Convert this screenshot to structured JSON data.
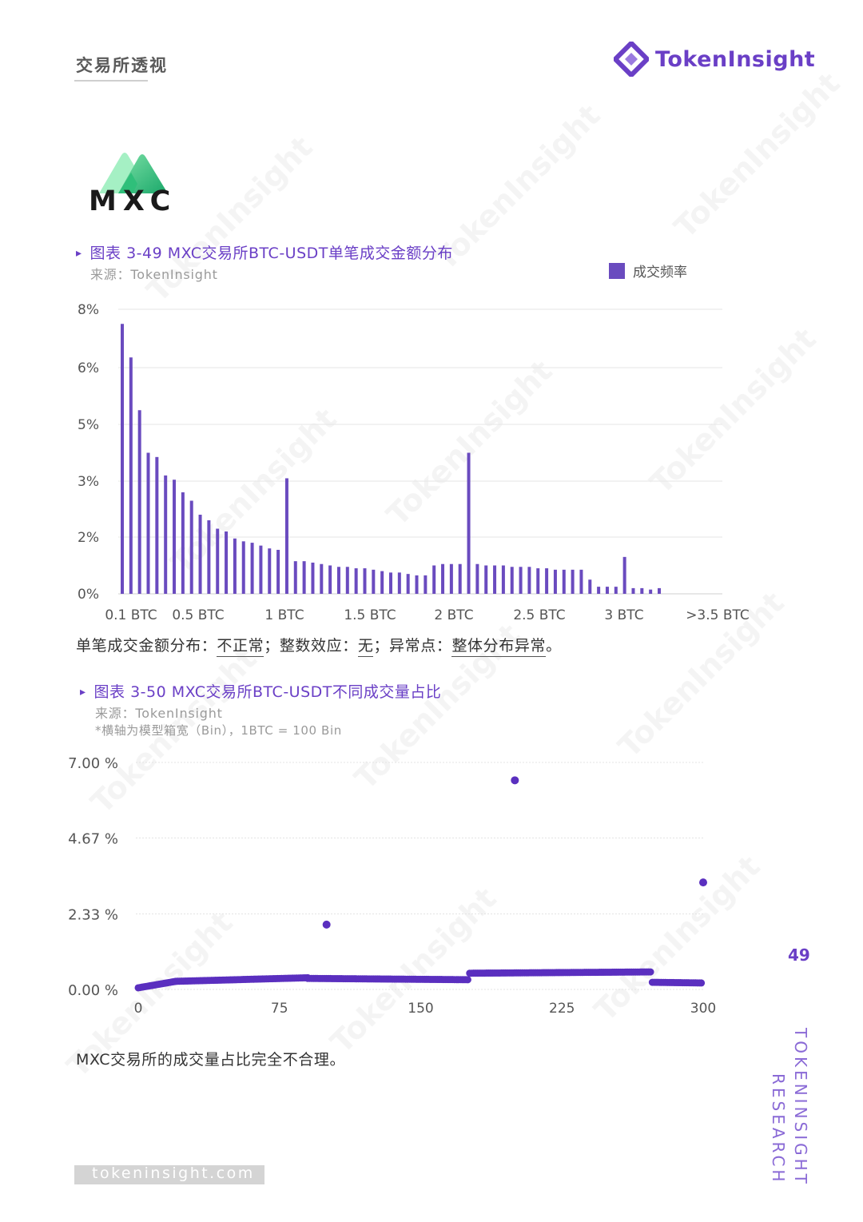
{
  "header": {
    "section_title": "交易所透视",
    "brand_name": "TokenInsight"
  },
  "exchange_logo": {
    "text": "MXC"
  },
  "figure1": {
    "title": "图表 3-49 MXC交易所BTC-USDT单笔成交金额分布",
    "source": "来源：TokenInsight",
    "legend_label": "成交频率"
  },
  "summary1": {
    "prefix": "单笔成交金额分布：",
    "v1": "不正常",
    "sep1": "；整数效应：",
    "v2": "无",
    "sep2": "；异常点：",
    "v3": "整体分布异常",
    "end": "。"
  },
  "figure2": {
    "title": "图表 3-50 MXC交易所BTC-USDT不同成交量占比",
    "source": "来源：TokenInsight",
    "note": "*横轴为模型箱宽（Bin），1BTC = 100 Bin"
  },
  "summary2": "MXC交易所的成交量占比完全不合理。",
  "page_number": "49",
  "side_label_1": "TOKENINSIGHT",
  "side_label_2": "RESEARCH",
  "footer_url": "tokeninsight.com",
  "colors": {
    "accent": "#6a3fc6",
    "bar": "#6a4bbf",
    "dot": "#5a2fbf"
  },
  "chart_data": [
    {
      "type": "bar",
      "ytick_labels": [
        "0%",
        "2%",
        "3%",
        "5%",
        "6%",
        "8%"
      ],
      "ytick_values": [
        0,
        2,
        3,
        5,
        6,
        8
      ],
      "ylim": [
        0,
        8
      ],
      "xtick_labels": [
        "0.1 BTC",
        "0.5 BTC",
        "1 BTC",
        "1.5 BTC",
        "2 BTC",
        "2.5 BTC",
        "3 BTC",
        ">3.5 BTC"
      ],
      "series": [
        {
          "name": "成交频率",
          "values": [
            7.5,
            6.35,
            5.25,
            4.0,
            3.85,
            3.2,
            3.05,
            2.8,
            2.65,
            2.4,
            2.3,
            2.15,
            2.1,
            1.95,
            1.85,
            1.8,
            1.7,
            1.6,
            1.55,
            3.1,
            1.15,
            1.15,
            1.1,
            1.05,
            1.0,
            0.95,
            0.95,
            0.9,
            0.9,
            0.85,
            0.8,
            0.75,
            0.75,
            0.7,
            0.65,
            0.65,
            1.0,
            1.05,
            1.05,
            1.05,
            4.0,
            1.05,
            1.0,
            1.0,
            1.0,
            0.95,
            0.95,
            0.95,
            0.9,
            0.9,
            0.85,
            0.85,
            0.85,
            0.85,
            0.5,
            0.25,
            0.25,
            0.25,
            1.3,
            0.2,
            0.2,
            0.15,
            0.2
          ]
        }
      ]
    },
    {
      "type": "scatter",
      "ytick_labels": [
        "0.00 %",
        "2.33 %",
        "4.67 %",
        "7.00 %"
      ],
      "ytick_values": [
        0,
        2.33,
        4.67,
        7.0
      ],
      "ylim": [
        0,
        7.0
      ],
      "xtick_labels": [
        "0",
        "75",
        "150",
        "225",
        "300"
      ],
      "xtick_values": [
        0,
        75,
        150,
        225,
        300
      ],
      "xlim": [
        0,
        300
      ],
      "outliers": [
        {
          "x": 100,
          "y": 2.0
        },
        {
          "x": 200,
          "y": 6.45
        },
        {
          "x": 300,
          "y": 3.3
        }
      ],
      "segments": [
        {
          "x_start": 0,
          "x_end": 20,
          "y_start": 0.05,
          "y_end": 0.25
        },
        {
          "x_start": 20,
          "x_end": 90,
          "y_start": 0.25,
          "y_end": 0.36
        },
        {
          "x_start": 90,
          "x_end": 175,
          "y_start": 0.34,
          "y_end": 0.3
        },
        {
          "x_start": 176,
          "x_end": 272,
          "y_start": 0.5,
          "y_end": 0.54
        },
        {
          "x_start": 273,
          "x_end": 299,
          "y_start": 0.22,
          "y_end": 0.2
        }
      ]
    }
  ]
}
